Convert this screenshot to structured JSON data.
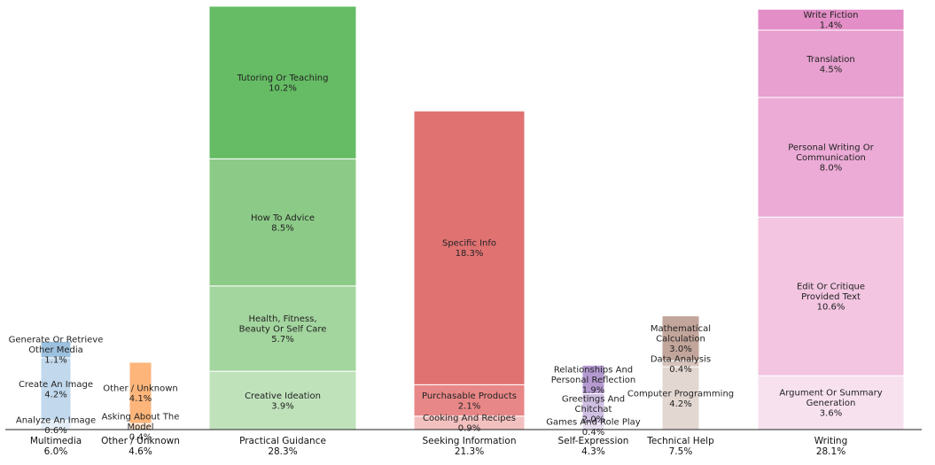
{
  "chart_data": {
    "type": "bar",
    "subtype": "stacked-variable-width",
    "ylim": [
      0,
      28.3
    ],
    "categories": [
      {
        "name": "Multimedia",
        "total": "6.0%",
        "color": "#aecbe3",
        "segments": [
          {
            "label": [
              "Analyze An Image"
            ],
            "value": 0.6,
            "pct": "0.6%",
            "color": "#e6eff7"
          },
          {
            "label": [
              "Create An Image"
            ],
            "value": 4.2,
            "pct": "4.2%",
            "color": "#c1d8ed"
          },
          {
            "label": [
              "Generate Or Retrieve",
              "Other Media"
            ],
            "value": 1.1,
            "pct": "1.1%",
            "color": "#9cc1df"
          }
        ]
      },
      {
        "name": "Other / Unknown",
        "total": "4.6%",
        "color": "#fdb57a",
        "segments": [
          {
            "label": [
              "Asking About The",
              "Model"
            ],
            "value": 0.4,
            "pct": "0.4%",
            "color": "#fde0c5"
          },
          {
            "label": [
              "Other / Unknown"
            ],
            "value": 4.1,
            "pct": "4.1%",
            "color": "#fdb57a"
          }
        ]
      },
      {
        "name": "Practical Guidance",
        "total": "28.3%",
        "color": "#6cc06c",
        "segments": [
          {
            "label": [
              "Creative Ideation"
            ],
            "value": 3.9,
            "pct": "3.9%",
            "color": "#bfe2bb"
          },
          {
            "label": [
              "Health, Fitness,",
              "Beauty Or Self Care"
            ],
            "value": 5.7,
            "pct": "5.7%",
            "color": "#a3d59e"
          },
          {
            "label": [
              "How To Advice"
            ],
            "value": 8.5,
            "pct": "8.5%",
            "color": "#8ccb87"
          },
          {
            "label": [
              "Tutoring Or Teaching"
            ],
            "value": 10.2,
            "pct": "10.2%",
            "color": "#65bc64"
          }
        ]
      },
      {
        "name": "Seeking Information",
        "total": "21.3%",
        "color": "#e07474",
        "segments": [
          {
            "label": [
              "Cooking And Recipes"
            ],
            "value": 0.9,
            "pct": "0.9%",
            "color": "#f3c0c0"
          },
          {
            "label": [
              "Purchasable Products"
            ],
            "value": 2.1,
            "pct": "2.1%",
            "color": "#e88787"
          },
          {
            "label": [
              "Specific Info"
            ],
            "value": 18.3,
            "pct": "18.3%",
            "color": "#e07272"
          }
        ]
      },
      {
        "name": "Self-Expression",
        "total": "4.3%",
        "color": "#b9a2d4",
        "segments": [
          {
            "label": [
              "Games And Role Play"
            ],
            "value": 0.4,
            "pct": "0.4%",
            "color": "#e7def0"
          },
          {
            "label": [
              "Greetings And",
              "Chitchat"
            ],
            "value": 2.0,
            "pct": "2.0%",
            "color": "#cfc0e3"
          },
          {
            "label": [
              "Relationships And",
              "Personal Reflection"
            ],
            "value": 1.9,
            "pct": "1.9%",
            "color": "#b59ad2"
          }
        ]
      },
      {
        "name": "Technical Help",
        "total": "7.5%",
        "color": "#c2a59c",
        "segments": [
          {
            "label": [
              "Computer Programming"
            ],
            "value": 4.2,
            "pct": "4.2%",
            "color": "#e3d7d1"
          },
          {
            "label": [
              "Data Analysis"
            ],
            "value": 0.4,
            "pct": "0.4%",
            "color": "#d7c3bb"
          },
          {
            "label": [
              "Mathematical",
              "Calculation"
            ],
            "value": 3.0,
            "pct": "3.0%",
            "color": "#c2a59b"
          }
        ]
      },
      {
        "name": "Writing",
        "total": "28.1%",
        "color": "#e9a6d3",
        "segments": [
          {
            "label": [
              "Argument Or Summary",
              "Generation"
            ],
            "value": 3.6,
            "pct": "3.6%",
            "color": "#f7e1ef"
          },
          {
            "label": [
              "Edit Or Critique",
              "Provided Text"
            ],
            "value": 10.6,
            "pct": "10.6%",
            "color": "#f3c5e1"
          },
          {
            "label": [
              "Personal Writing Or",
              "Communication"
            ],
            "value": 8.0,
            "pct": "8.0%",
            "color": "#ecabd6"
          },
          {
            "label": [
              "Translation"
            ],
            "value": 4.5,
            "pct": "4.5%",
            "color": "#e7a0cf"
          },
          {
            "label": [
              "Write Fiction"
            ],
            "value": 1.4,
            "pct": "1.4%",
            "color": "#e38ec7"
          }
        ]
      }
    ]
  }
}
